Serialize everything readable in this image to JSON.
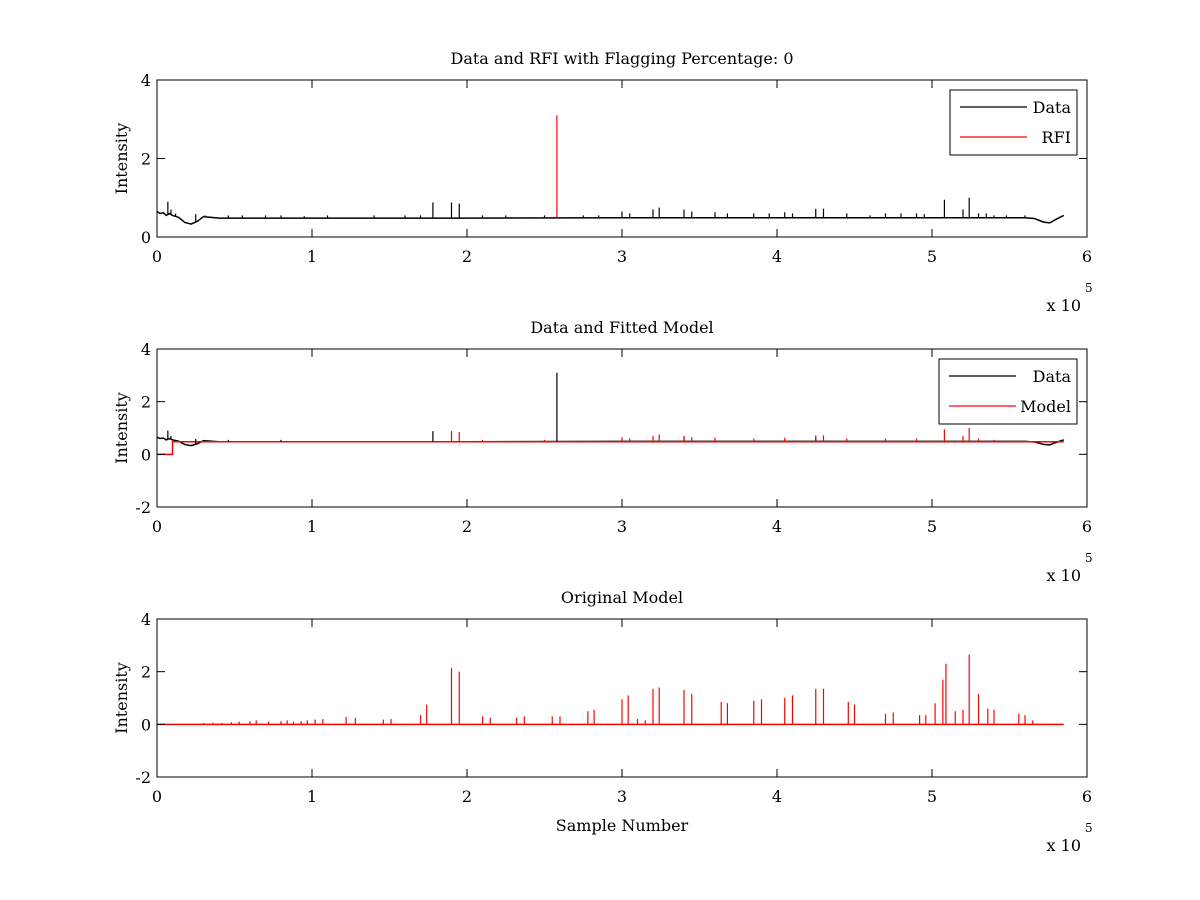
{
  "figure": {
    "background": "#ffffff",
    "data_color": "#000000",
    "rfi_color": "#ff0000",
    "model_color": "#ff0000"
  },
  "chart_data": [
    {
      "type": "line",
      "title": "Data and RFI with Flagging Percentage: 0",
      "xlabel": "",
      "ylabel": "Intensity",
      "xlim": [
        0,
        600000
      ],
      "ylim": [
        0,
        4
      ],
      "xticks": [
        0,
        1,
        2,
        3,
        4,
        5,
        6
      ],
      "yticks": [
        0,
        2,
        4
      ],
      "x_multiplier": {
        "base": "x 10",
        "exponent": "5"
      },
      "grid": false,
      "legend": {
        "position": "top-right",
        "entries": [
          "Data",
          "RFI"
        ]
      },
      "baseline": {
        "x": [
          0,
          2000,
          4000,
          6000,
          8000,
          10000,
          14000,
          18000,
          22000,
          26000,
          30000,
          40000,
          100000,
          200000,
          300000,
          400000,
          500000,
          560000,
          566000,
          572000,
          576000,
          580000,
          585000
        ],
        "y": [
          0.65,
          0.6,
          0.62,
          0.55,
          0.6,
          0.55,
          0.5,
          0.37,
          0.33,
          0.4,
          0.52,
          0.48,
          0.48,
          0.48,
          0.49,
          0.49,
          0.49,
          0.49,
          0.47,
          0.38,
          0.36,
          0.45,
          0.55
        ]
      },
      "series": [
        {
          "name": "Data",
          "color": "#000000",
          "spikes": [
            [
              7000,
              0.9
            ],
            [
              9000,
              0.7
            ],
            [
              12000,
              0.6
            ],
            [
              25000,
              0.58
            ],
            [
              31000,
              0.55
            ],
            [
              46000,
              0.55
            ],
            [
              55000,
              0.55
            ],
            [
              70000,
              0.55
            ],
            [
              80000,
              0.55
            ],
            [
              95000,
              0.53
            ],
            [
              110000,
              0.55
            ],
            [
              140000,
              0.55
            ],
            [
              160000,
              0.55
            ],
            [
              170000,
              0.55
            ],
            [
              178000,
              0.88
            ],
            [
              190000,
              0.88
            ],
            [
              195000,
              0.85
            ],
            [
              210000,
              0.55
            ],
            [
              225000,
              0.55
            ],
            [
              250000,
              0.55
            ],
            [
              258000,
              0.55
            ],
            [
              275000,
              0.55
            ],
            [
              285000,
              0.55
            ],
            [
              300000,
              0.65
            ],
            [
              305000,
              0.6
            ],
            [
              320000,
              0.7
            ],
            [
              324000,
              0.75
            ],
            [
              340000,
              0.7
            ],
            [
              345000,
              0.65
            ],
            [
              360000,
              0.63
            ],
            [
              368000,
              0.6
            ],
            [
              385000,
              0.6
            ],
            [
              395000,
              0.6
            ],
            [
              405000,
              0.63
            ],
            [
              410000,
              0.6
            ],
            [
              425000,
              0.72
            ],
            [
              430000,
              0.72
            ],
            [
              445000,
              0.6
            ],
            [
              460000,
              0.55
            ],
            [
              470000,
              0.6
            ],
            [
              480000,
              0.6
            ],
            [
              490000,
              0.6
            ],
            [
              495000,
              0.58
            ],
            [
              508000,
              0.95
            ],
            [
              520000,
              0.7
            ],
            [
              524000,
              1.0
            ],
            [
              530000,
              0.6
            ],
            [
              535000,
              0.6
            ],
            [
              540000,
              0.55
            ],
            [
              548000,
              0.55
            ],
            [
              560000,
              0.55
            ]
          ]
        },
        {
          "name": "RFI",
          "color": "#ff0000",
          "spikes": [
            [
              258000,
              3.1
            ]
          ]
        }
      ]
    },
    {
      "type": "line",
      "title": "Data and Fitted Model",
      "xlabel": "",
      "ylabel": "Intensity",
      "xlim": [
        0,
        600000
      ],
      "ylim": [
        -2,
        4
      ],
      "xticks": [
        0,
        1,
        2,
        3,
        4,
        5,
        6
      ],
      "yticks": [
        -2,
        0,
        2,
        4
      ],
      "x_multiplier": {
        "base": "x 10",
        "exponent": "5"
      },
      "grid": false,
      "legend": {
        "position": "top-right",
        "entries": [
          "Data",
          "Model"
        ]
      },
      "data_baseline": {
        "x": [
          0,
          2000,
          4000,
          6000,
          8000,
          10000,
          14000,
          18000,
          22000,
          26000,
          30000,
          40000,
          100000,
          200000,
          300000,
          400000,
          500000,
          560000,
          566000,
          572000,
          576000,
          580000,
          585000
        ],
        "y": [
          0.65,
          0.6,
          0.62,
          0.55,
          0.6,
          0.55,
          0.5,
          0.37,
          0.33,
          0.4,
          0.52,
          0.48,
          0.48,
          0.48,
          0.49,
          0.49,
          0.49,
          0.49,
          0.47,
          0.38,
          0.36,
          0.45,
          0.55
        ]
      },
      "model_baseline": {
        "x": [
          0,
          10000,
          10001,
          585000
        ],
        "y": [
          0,
          0,
          0.48,
          0.48
        ]
      },
      "series": [
        {
          "name": "Data",
          "color": "#000000",
          "spikes": [
            [
              7000,
              0.9
            ],
            [
              9000,
              0.7
            ],
            [
              25000,
              0.58
            ],
            [
              46000,
              0.55
            ],
            [
              80000,
              0.55
            ],
            [
              178000,
              0.88
            ],
            [
              258000,
              3.1
            ],
            [
              340000,
              0.65
            ],
            [
              425000,
              0.65
            ]
          ]
        },
        {
          "name": "Model",
          "color": "#ff0000",
          "spikes": [
            [
              190000,
              0.88
            ],
            [
              195000,
              0.85
            ],
            [
              210000,
              0.55
            ],
            [
              250000,
              0.55
            ],
            [
              300000,
              0.65
            ],
            [
              305000,
              0.6
            ],
            [
              320000,
              0.7
            ],
            [
              324000,
              0.75
            ],
            [
              340000,
              0.7
            ],
            [
              345000,
              0.65
            ],
            [
              360000,
              0.63
            ],
            [
              385000,
              0.6
            ],
            [
              405000,
              0.63
            ],
            [
              425000,
              0.72
            ],
            [
              430000,
              0.72
            ],
            [
              445000,
              0.6
            ],
            [
              470000,
              0.6
            ],
            [
              490000,
              0.6
            ],
            [
              508000,
              0.95
            ],
            [
              520000,
              0.7
            ],
            [
              524000,
              1.0
            ],
            [
              530000,
              0.6
            ],
            [
              540000,
              0.55
            ]
          ]
        }
      ]
    },
    {
      "type": "line",
      "title": "Original Model",
      "xlabel": "Sample Number",
      "ylabel": "Intensity",
      "xlim": [
        0,
        600000
      ],
      "ylim": [
        -2,
        4
      ],
      "xticks": [
        0,
        1,
        2,
        3,
        4,
        5,
        6
      ],
      "yticks": [
        -2,
        0,
        2,
        4
      ],
      "x_multiplier": {
        "base": "x 10",
        "exponent": "5"
      },
      "grid": false,
      "legend": null,
      "baseline": {
        "x": [
          0,
          585000
        ],
        "y": [
          0,
          0
        ]
      },
      "series": [
        {
          "name": "",
          "color": "#ff0000",
          "spikes": [
            [
              30000,
              0.05
            ],
            [
              36000,
              0.06
            ],
            [
              42000,
              0.05
            ],
            [
              48000,
              0.08
            ],
            [
              53000,
              0.1
            ],
            [
              60000,
              0.12
            ],
            [
              64000,
              0.15
            ],
            [
              72000,
              0.1
            ],
            [
              80000,
              0.12
            ],
            [
              84000,
              0.15
            ],
            [
              88000,
              0.1
            ],
            [
              93000,
              0.12
            ],
            [
              97000,
              0.15
            ],
            [
              102000,
              0.18
            ],
            [
              107000,
              0.2
            ],
            [
              122000,
              0.28
            ],
            [
              128000,
              0.25
            ],
            [
              146000,
              0.18
            ],
            [
              151000,
              0.2
            ],
            [
              170000,
              0.35
            ],
            [
              174000,
              0.75
            ],
            [
              190000,
              2.15
            ],
            [
              195000,
              2.0
            ],
            [
              210000,
              0.3
            ],
            [
              215000,
              0.25
            ],
            [
              232000,
              0.25
            ],
            [
              237000,
              0.3
            ],
            [
              255000,
              0.3
            ],
            [
              260000,
              0.3
            ],
            [
              278000,
              0.5
            ],
            [
              282000,
              0.55
            ],
            [
              300000,
              0.95
            ],
            [
              304000,
              1.1
            ],
            [
              310000,
              0.2
            ],
            [
              315000,
              0.15
            ],
            [
              320000,
              1.35
            ],
            [
              324000,
              1.4
            ],
            [
              340000,
              1.3
            ],
            [
              345000,
              1.15
            ],
            [
              364000,
              0.85
            ],
            [
              368000,
              0.8
            ],
            [
              385000,
              0.9
            ],
            [
              390000,
              0.95
            ],
            [
              405000,
              1.0
            ],
            [
              410000,
              1.1
            ],
            [
              425000,
              1.35
            ],
            [
              430000,
              1.35
            ],
            [
              446000,
              0.85
            ],
            [
              450000,
              0.75
            ],
            [
              470000,
              0.4
            ],
            [
              475000,
              0.45
            ],
            [
              492000,
              0.35
            ],
            [
              496000,
              0.35
            ],
            [
              502000,
              0.8
            ],
            [
              507000,
              1.7
            ],
            [
              509000,
              2.3
            ],
            [
              515000,
              0.5
            ],
            [
              520000,
              0.55
            ],
            [
              524000,
              2.65
            ],
            [
              530000,
              1.15
            ],
            [
              536000,
              0.6
            ],
            [
              540000,
              0.55
            ],
            [
              556000,
              0.4
            ],
            [
              560000,
              0.35
            ],
            [
              565000,
              0.15
            ]
          ]
        }
      ]
    }
  ]
}
